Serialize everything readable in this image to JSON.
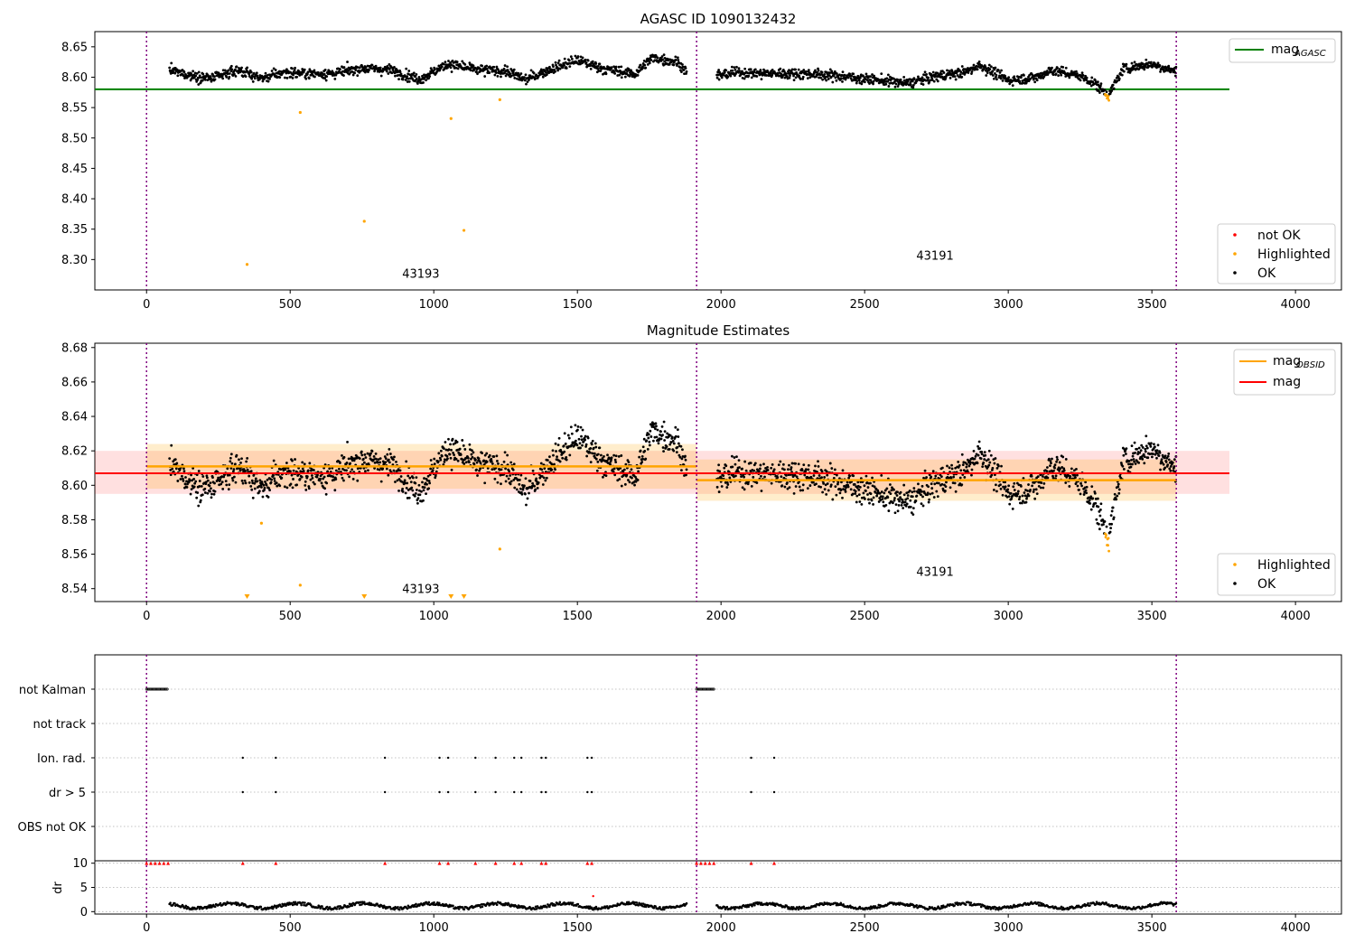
{
  "colors": {
    "ok": "#000000",
    "highlighted": "#ffa500",
    "not_ok": "#ff0000",
    "mag_agasc": "#008000",
    "mag_obsid": "#ffa500",
    "mag": "#ff0000",
    "obsid_boundary": "#800080"
  },
  "chart_data": [
    {
      "type": "scatter",
      "title": "AGASC ID 1090132432",
      "xlim": [
        -180,
        4160
      ],
      "ylim": [
        8.25,
        8.675
      ],
      "x_ticks": [
        0,
        500,
        1000,
        1500,
        2000,
        2500,
        3000,
        3500,
        4000
      ],
      "x_tick_labels": [
        "0",
        "500",
        "1000",
        "1500",
        "2000",
        "2500",
        "3000",
        "3500",
        "4000"
      ],
      "y_ticks": [
        8.3,
        8.35,
        8.4,
        8.45,
        8.5,
        8.55,
        8.6,
        8.65
      ],
      "y_tick_labels": [
        "8.30",
        "8.35",
        "8.40",
        "8.45",
        "8.50",
        "8.55",
        "8.60",
        "8.65"
      ],
      "obsid_boundaries": [
        0,
        1915,
        3585
      ],
      "obsid_labels": [
        {
          "text": "43193",
          "x": 955,
          "y": 8.27
        },
        {
          "text": "43191",
          "x": 2745,
          "y": 8.3
        }
      ],
      "mag_agasc": {
        "value": 8.58,
        "x_range": [
          -180,
          3770
        ]
      },
      "outliers": [
        {
          "x": 350,
          "y": 8.292
        },
        {
          "x": 535,
          "y": 8.542
        },
        {
          "x": 758,
          "y": 8.363
        },
        {
          "x": 1060,
          "y": 8.532
        },
        {
          "x": 1105,
          "y": 8.348
        },
        {
          "x": 1230,
          "y": 8.563
        }
      ],
      "legend_lines": [
        {
          "label": "mag",
          "subscript": "AGASC",
          "color": "#008000"
        }
      ],
      "legend_points": [
        {
          "label": "not OK",
          "color": "#ff0000"
        },
        {
          "label": "Highlighted",
          "color": "#ffa500"
        },
        {
          "label": "OK",
          "color": "#000000"
        }
      ],
      "legend_lines_position": "upper right",
      "legend_points_position": "lower right",
      "grid": false
    },
    {
      "type": "scatter",
      "title": "Magnitude Estimates",
      "xlim": [
        -180,
        4160
      ],
      "ylim": [
        8.5325,
        8.6825
      ],
      "x_ticks": [
        0,
        500,
        1000,
        1500,
        2000,
        2500,
        3000,
        3500,
        4000
      ],
      "x_tick_labels": [
        "0",
        "500",
        "1000",
        "1500",
        "2000",
        "2500",
        "3000",
        "3500",
        "4000"
      ],
      "y_ticks": [
        8.54,
        8.56,
        8.58,
        8.6,
        8.62,
        8.64,
        8.66,
        8.68
      ],
      "y_tick_labels": [
        "8.54",
        "8.56",
        "8.58",
        "8.60",
        "8.62",
        "8.64",
        "8.66",
        "8.68"
      ],
      "obsid_boundaries": [
        0,
        1915,
        3585
      ],
      "obsid_labels": [
        {
          "text": "43193",
          "x": 955,
          "y": 8.5375
        },
        {
          "text": "43191",
          "x": 2745,
          "y": 8.5475
        }
      ],
      "mag": {
        "value": 8.607,
        "band": [
          8.595,
          8.62
        ],
        "x_range": [
          -180,
          3770
        ]
      },
      "mag_obsid": [
        {
          "x_range": [
            0,
            1915
          ],
          "value": 8.611,
          "band": [
            8.598,
            8.624
          ]
        },
        {
          "x_range": [
            1915,
            3585
          ],
          "value": 8.603,
          "band": [
            8.591,
            8.615
          ]
        }
      ],
      "offscale_markers_x": [
        350,
        758,
        1060,
        1105
      ],
      "extra_points": [
        {
          "x": 400,
          "y": 8.578
        },
        {
          "x": 535,
          "y": 8.542
        },
        {
          "x": 1230,
          "y": 8.563
        }
      ],
      "legend_lines": [
        {
          "label": "mag",
          "subscript": "OBSID",
          "color": "#ffa500"
        },
        {
          "label": "mag",
          "subscript": "",
          "color": "#ff0000"
        }
      ],
      "legend_points": [
        {
          "label": "Highlighted",
          "color": "#ffa500"
        },
        {
          "label": "OK",
          "color": "#000000"
        }
      ],
      "legend_lines_position": "upper right",
      "legend_points_position": "lower right",
      "grid": false
    },
    {
      "type": "scatter",
      "title": "",
      "xlim": [
        -180,
        4160
      ],
      "x_ticks": [
        0,
        500,
        1000,
        1500,
        2000,
        2500,
        3000,
        3500,
        4000
      ],
      "x_tick_labels": [
        "0",
        "500",
        "1000",
        "1500",
        "2000",
        "2500",
        "3000",
        "3500",
        "4000"
      ],
      "flag_rows": [
        "not Kalman",
        "not track",
        "Ion. rad.",
        "dr > 5",
        "OBS not OK"
      ],
      "flag_events": {
        "not Kalman": [
          [
            0,
            75
          ],
          [
            1915,
            1975
          ]
        ],
        "Ion. rad.": [
          335,
          450,
          830,
          1020,
          1050,
          1145,
          1215,
          1280,
          1305,
          1375,
          1390,
          1535,
          1550,
          2105,
          2185
        ],
        "dr > 5": [
          335,
          450,
          830,
          1020,
          1050,
          1145,
          1215,
          1280,
          1305,
          1375,
          1390,
          1535,
          1550,
          2105,
          2185
        ]
      },
      "dr_ylabel": "dr",
      "dr_ylim": [
        -0.5,
        10.5
      ],
      "dr_y_ticks": [
        0,
        5,
        10
      ],
      "dr_y_tick_labels": [
        "0",
        "5",
        "10"
      ],
      "dr_capped_x": [
        0,
        15,
        30,
        45,
        60,
        75,
        335,
        450,
        830,
        1020,
        1050,
        1145,
        1215,
        1280,
        1305,
        1375,
        1390,
        1535,
        1550,
        1915,
        1930,
        1945,
        1960,
        1975,
        2105,
        2185
      ],
      "dr_extra_point": {
        "x": 1555,
        "y": 3.2
      },
      "obsid_boundaries": [
        0,
        1915,
        3585
      ],
      "grid": true
    }
  ]
}
